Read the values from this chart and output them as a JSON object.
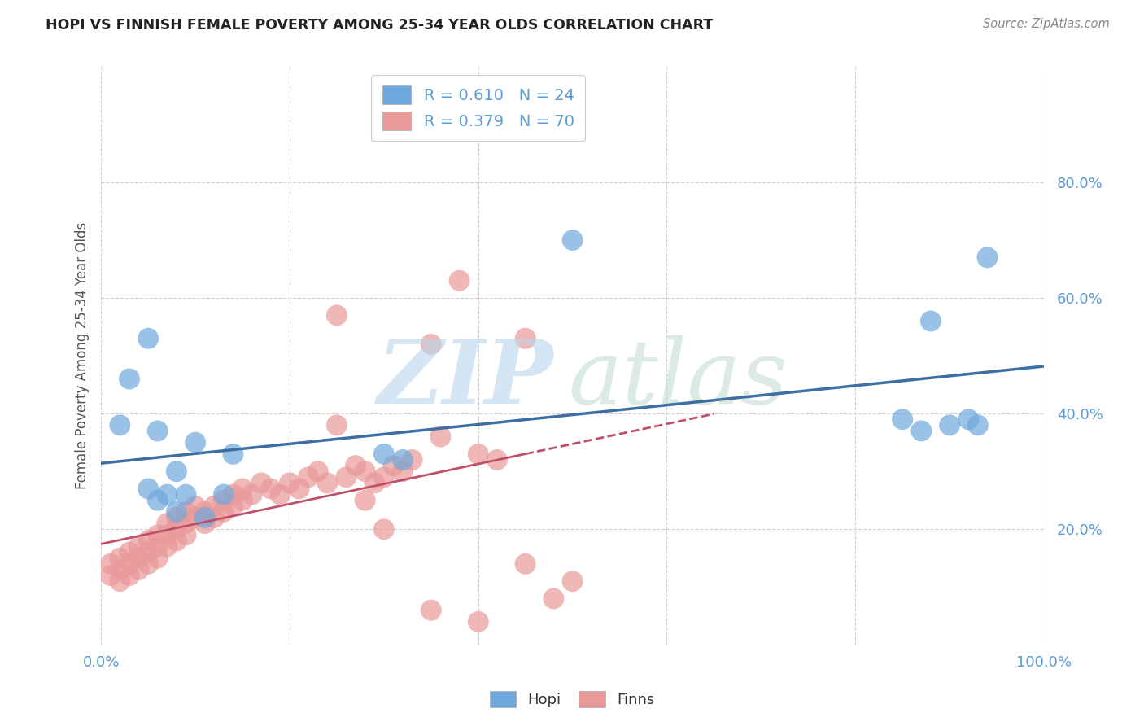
{
  "title": "HOPI VS FINNISH FEMALE POVERTY AMONG 25-34 YEAR OLDS CORRELATION CHART",
  "source": "Source: ZipAtlas.com",
  "ylabel": "Female Poverty Among 25-34 Year Olds",
  "xlim": [
    0,
    1.0
  ],
  "ylim": [
    0,
    1.0
  ],
  "xticks": [
    0.0,
    0.2,
    0.4,
    0.6,
    0.8,
    1.0
  ],
  "xticklabels": [
    "0.0%",
    "",
    "",
    "",
    "",
    "100.0%"
  ],
  "ytick_positions": [
    0.2,
    0.4,
    0.6,
    0.8
  ],
  "yticklabels": [
    "20.0%",
    "40.0%",
    "60.0%",
    "80.0%"
  ],
  "hopi_color": "#6fa8dc",
  "finns_color": "#ea9999",
  "hopi_line_color": "#3d6fa3",
  "finns_line_color": "#c0506a",
  "tick_color": "#5b9bd5",
  "background_color": "#ffffff",
  "grid_color": "#cccccc",
  "hopi_R": "0.610",
  "hopi_N": "24",
  "finns_R": "0.379",
  "finns_N": "70",
  "hopi_scatter_x": [
    0.02,
    0.03,
    0.05,
    0.06,
    0.07,
    0.08,
    0.09,
    0.1,
    0.11,
    0.13,
    0.14,
    0.3,
    0.32,
    0.5,
    0.85,
    0.87,
    0.88,
    0.9,
    0.92,
    0.93,
    0.94,
    0.05,
    0.06,
    0.08
  ],
  "hopi_scatter_y": [
    0.38,
    0.46,
    0.53,
    0.37,
    0.26,
    0.3,
    0.26,
    0.35,
    0.22,
    0.26,
    0.33,
    0.33,
    0.32,
    0.7,
    0.39,
    0.37,
    0.56,
    0.38,
    0.39,
    0.38,
    0.67,
    0.27,
    0.25,
    0.23
  ],
  "finns_scatter_x": [
    0.01,
    0.01,
    0.02,
    0.02,
    0.02,
    0.03,
    0.03,
    0.03,
    0.04,
    0.04,
    0.04,
    0.05,
    0.05,
    0.05,
    0.06,
    0.06,
    0.06,
    0.07,
    0.07,
    0.07,
    0.08,
    0.08,
    0.08,
    0.09,
    0.09,
    0.09,
    0.1,
    0.1,
    0.11,
    0.11,
    0.12,
    0.12,
    0.13,
    0.13,
    0.14,
    0.14,
    0.15,
    0.15,
    0.16,
    0.17,
    0.18,
    0.19,
    0.2,
    0.21,
    0.22,
    0.23,
    0.24,
    0.25,
    0.26,
    0.27,
    0.28,
    0.29,
    0.3,
    0.31,
    0.32,
    0.33,
    0.35,
    0.36,
    0.38,
    0.4,
    0.42,
    0.45,
    0.48,
    0.5,
    0.25,
    0.28,
    0.3,
    0.35,
    0.4,
    0.45
  ],
  "finns_scatter_y": [
    0.14,
    0.12,
    0.15,
    0.13,
    0.11,
    0.16,
    0.14,
    0.12,
    0.17,
    0.15,
    0.13,
    0.18,
    0.16,
    0.14,
    0.19,
    0.17,
    0.15,
    0.21,
    0.19,
    0.17,
    0.22,
    0.2,
    0.18,
    0.23,
    0.21,
    0.19,
    0.22,
    0.24,
    0.23,
    0.21,
    0.24,
    0.22,
    0.25,
    0.23,
    0.26,
    0.24,
    0.27,
    0.25,
    0.26,
    0.28,
    0.27,
    0.26,
    0.28,
    0.27,
    0.29,
    0.3,
    0.28,
    0.57,
    0.29,
    0.31,
    0.3,
    0.28,
    0.29,
    0.31,
    0.3,
    0.32,
    0.52,
    0.36,
    0.63,
    0.33,
    0.32,
    0.53,
    0.08,
    0.11,
    0.38,
    0.25,
    0.2,
    0.06,
    0.04,
    0.14
  ]
}
